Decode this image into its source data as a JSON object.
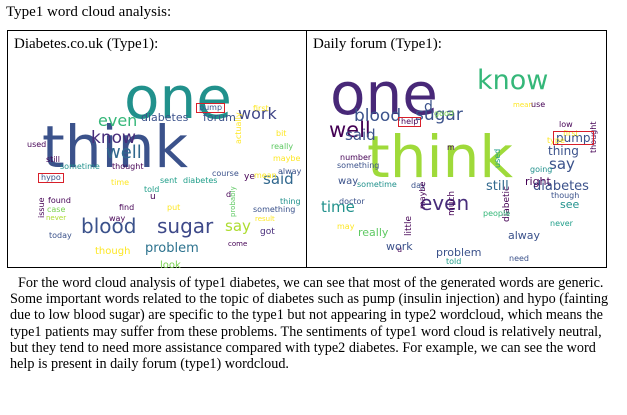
{
  "document": {
    "title": "Type1 word cloud analysis:",
    "paragraph": "For the word cloud analysis of type1 diabetes, we can see that most of the generated words are generic. Some important words related to the topic of diabetes such as pump (insulin injection) and hypo (fainting due to low blood sugar) are specific to the type1 but not appearing in type2 wordcloud, which means the type1 patients may suffer from these problems. The sentiments of type1 word cloud is relatively neutral, but they tend to need more assistance compared with type2 diabetes. For example, we can see the word help is present in daily forum (type1) wordcloud."
  },
  "panels": [
    {
      "title": "Diabetes.co.uk (Type1):",
      "highlighted": [
        "pump",
        "hypo"
      ],
      "words": [
        {
          "text": "think",
          "size": 58,
          "color": "#3b528b"
        },
        {
          "text": "one",
          "size": 58,
          "color": "#21918c"
        },
        {
          "text": "blood",
          "size": 20,
          "color": "#3b528b"
        },
        {
          "text": "sugar",
          "size": 20,
          "color": "#3e4989"
        },
        {
          "text": "know",
          "size": 17,
          "color": "#472c7a"
        },
        {
          "text": "well",
          "size": 18,
          "color": "#31688e"
        },
        {
          "text": "even",
          "size": 16,
          "color": "#35b779"
        },
        {
          "text": "work",
          "size": 16,
          "color": "#404688"
        },
        {
          "text": "say",
          "size": 15,
          "color": "#addc30"
        },
        {
          "text": "said",
          "size": 15,
          "color": "#31688e"
        },
        {
          "text": "problem",
          "size": 13,
          "color": "#2c728e"
        },
        {
          "text": "diabetes",
          "size": 11,
          "color": "#3b528b"
        },
        {
          "text": "forum",
          "size": 11,
          "color": "#3b528b"
        },
        {
          "text": "though",
          "size": 10,
          "color": "#fde725"
        },
        {
          "text": "look",
          "size": 10,
          "color": "#7ad151"
        },
        {
          "text": "got",
          "size": 9,
          "color": "#472c7a"
        },
        {
          "text": "used",
          "size": 8,
          "color": "#440154"
        },
        {
          "text": "still",
          "size": 8,
          "color": "#440154"
        },
        {
          "text": "sometime",
          "size": 8,
          "color": "#21918c"
        },
        {
          "text": "thought",
          "size": 8,
          "color": "#440154"
        },
        {
          "text": "course",
          "size": 8,
          "color": "#3b528b"
        },
        {
          "text": "sent",
          "size": 8,
          "color": "#1f9e89"
        },
        {
          "text": "diabetes",
          "size": 8,
          "color": "#1f9e89"
        },
        {
          "text": "found",
          "size": 8,
          "color": "#440154"
        },
        {
          "text": "find",
          "size": 8,
          "color": "#440154"
        },
        {
          "text": "put",
          "size": 8,
          "color": "#fde725"
        },
        {
          "text": "case",
          "size": 8,
          "color": "#7ad151"
        },
        {
          "text": "never",
          "size": 7,
          "color": "#addc30"
        },
        {
          "text": "way",
          "size": 8,
          "color": "#440154"
        },
        {
          "text": "today",
          "size": 8,
          "color": "#3b528b"
        },
        {
          "text": "first",
          "size": 8,
          "color": "#fde725"
        },
        {
          "text": "bit",
          "size": 8,
          "color": "#fde725"
        },
        {
          "text": "really",
          "size": 8,
          "color": "#5ec962"
        },
        {
          "text": "maybe",
          "size": 8,
          "color": "#fde725"
        },
        {
          "text": "alway",
          "size": 8,
          "color": "#3b528b"
        },
        {
          "text": "thing",
          "size": 8,
          "color": "#21918c"
        },
        {
          "text": "something",
          "size": 8,
          "color": "#3b528b"
        },
        {
          "text": "result",
          "size": 7,
          "color": "#fde725"
        },
        {
          "text": "mean",
          "size": 8,
          "color": "#fde725"
        },
        {
          "text": "time",
          "size": 8,
          "color": "#fde725"
        },
        {
          "text": "told",
          "size": 8,
          "color": "#1f9e89"
        },
        {
          "text": "come",
          "size": 7,
          "color": "#440154"
        },
        {
          "text": "issue",
          "size": 8,
          "color": "#440154"
        },
        {
          "text": "actually",
          "size": 8,
          "color": "#fde725"
        },
        {
          "text": "probably",
          "size": 7,
          "color": "#5ec962"
        },
        {
          "text": "ye",
          "size": 9,
          "color": "#440154"
        },
        {
          "text": "u",
          "size": 9,
          "color": "#440154"
        },
        {
          "text": "d",
          "size": 8,
          "color": "#440154"
        },
        {
          "text": "pump",
          "size": 8,
          "color": "#3b528b"
        },
        {
          "text": "hypo",
          "size": 8,
          "color": "#3b528b"
        }
      ]
    },
    {
      "title": "Daily forum (Type1):",
      "highlighted": [
        "pump",
        "help"
      ],
      "words": [
        {
          "text": "one",
          "size": 58,
          "color": "#482878"
        },
        {
          "text": "think",
          "size": 58,
          "color": "#9fda3a"
        },
        {
          "text": "know",
          "size": 27,
          "color": "#35b779"
        },
        {
          "text": "well",
          "size": 21,
          "color": "#440154"
        },
        {
          "text": "sugar",
          "size": 17,
          "color": "#3b528b"
        },
        {
          "text": "blood",
          "size": 17,
          "color": "#3b528b"
        },
        {
          "text": "even",
          "size": 20,
          "color": "#472c7a"
        },
        {
          "text": "say",
          "size": 15,
          "color": "#3b528b"
        },
        {
          "text": "said",
          "size": 15,
          "color": "#3b528b"
        },
        {
          "text": "time",
          "size": 15,
          "color": "#21918c"
        },
        {
          "text": "diabetes",
          "size": 13,
          "color": "#3b528b"
        },
        {
          "text": "still",
          "size": 13,
          "color": "#31688e"
        },
        {
          "text": "pump",
          "size": 12,
          "color": "#3b528b"
        },
        {
          "text": "thing",
          "size": 12,
          "color": "#3b528b"
        },
        {
          "text": "problem",
          "size": 11,
          "color": "#3b528b"
        },
        {
          "text": "work",
          "size": 11,
          "color": "#3b528b"
        },
        {
          "text": "really",
          "size": 11,
          "color": "#5ec962"
        },
        {
          "text": "see",
          "size": 11,
          "color": "#21918c"
        },
        {
          "text": "alway",
          "size": 11,
          "color": "#3b528b"
        },
        {
          "text": "way",
          "size": 10,
          "color": "#3b528b"
        },
        {
          "text": "d",
          "size": 14,
          "color": "#3b528b"
        },
        {
          "text": "good",
          "size": 8,
          "color": "#7ad151"
        },
        {
          "text": "mean",
          "size": 7,
          "color": "#fde725"
        },
        {
          "text": "use",
          "size": 8,
          "color": "#440154"
        },
        {
          "text": "low",
          "size": 8,
          "color": "#440154"
        },
        {
          "text": "first",
          "size": 8,
          "color": "#fde725"
        },
        {
          "text": "type",
          "size": 8,
          "color": "#fde725"
        },
        {
          "text": "number",
          "size": 8,
          "color": "#440154"
        },
        {
          "text": "something",
          "size": 8,
          "color": "#3b528b"
        },
        {
          "text": "going",
          "size": 8,
          "color": "#21918c"
        },
        {
          "text": "sometime",
          "size": 8,
          "color": "#21918c"
        },
        {
          "text": "day",
          "size": 8,
          "color": "#3b528b"
        },
        {
          "text": "doctor",
          "size": 8,
          "color": "#3b528b"
        },
        {
          "text": "maybe",
          "size": 8,
          "color": "#440154"
        },
        {
          "text": "much",
          "size": 9,
          "color": "#440154"
        },
        {
          "text": "diabetic",
          "size": 9,
          "color": "#440154"
        },
        {
          "text": "little",
          "size": 9,
          "color": "#440154"
        },
        {
          "text": "right",
          "size": 11,
          "color": "#440154"
        },
        {
          "text": "used",
          "size": 8,
          "color": "#1f9e89"
        },
        {
          "text": "thought",
          "size": 8,
          "color": "#440154"
        },
        {
          "text": "though",
          "size": 8,
          "color": "#3b528b"
        },
        {
          "text": "never",
          "size": 8,
          "color": "#1f9e89"
        },
        {
          "text": "need",
          "size": 8,
          "color": "#3b528b"
        },
        {
          "text": "told",
          "size": 8,
          "color": "#1f9e89"
        },
        {
          "text": "people",
          "size": 8,
          "color": "#35b779"
        },
        {
          "text": "may",
          "size": 8,
          "color": "#fde725"
        },
        {
          "text": "help",
          "size": 8,
          "color": "#440154"
        },
        {
          "text": "u",
          "size": 8,
          "color": "#440154"
        },
        {
          "text": "m",
          "size": 8,
          "color": "#440154"
        }
      ]
    }
  ]
}
